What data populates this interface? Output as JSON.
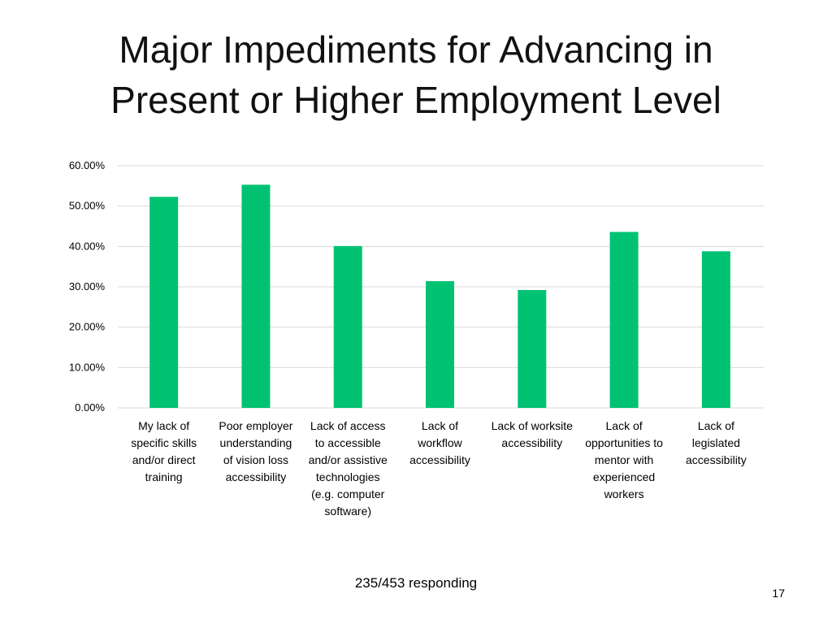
{
  "slide": {
    "title_lines": [
      "Major Impediments for Advancing in",
      "Present or Higher Employment Level"
    ],
    "footer_note": "235/453 responding",
    "page_number": "17"
  },
  "chart_data": {
    "type": "bar",
    "categories": [
      [
        "My lack of",
        "specific skills",
        "and/or direct",
        "training"
      ],
      [
        "Poor employer",
        "understanding",
        "of vision loss",
        "accessibility"
      ],
      [
        "Lack of access",
        "to accessible",
        "and/or assistive",
        "technologies",
        "(e.g. computer",
        "software)"
      ],
      [
        "Lack of",
        "workflow",
        "accessibility"
      ],
      [
        "Lack of worksite",
        "accessibility"
      ],
      [
        "Lack of",
        "opportunities to",
        "mentor with",
        "experienced",
        "workers"
      ],
      [
        "Lack of",
        "legislated",
        "accessibility"
      ]
    ],
    "values": [
      52.3,
      55.3,
      40.1,
      31.4,
      29.2,
      43.6,
      38.8
    ],
    "ylim": [
      0,
      60
    ],
    "yticks": [
      "0.00%",
      "10.00%",
      "20.00%",
      "30.00%",
      "40.00%",
      "50.00%",
      "60.00%"
    ],
    "grid": true,
    "bar_color": "#00c272",
    "grid_color": "#d9d9d9"
  }
}
